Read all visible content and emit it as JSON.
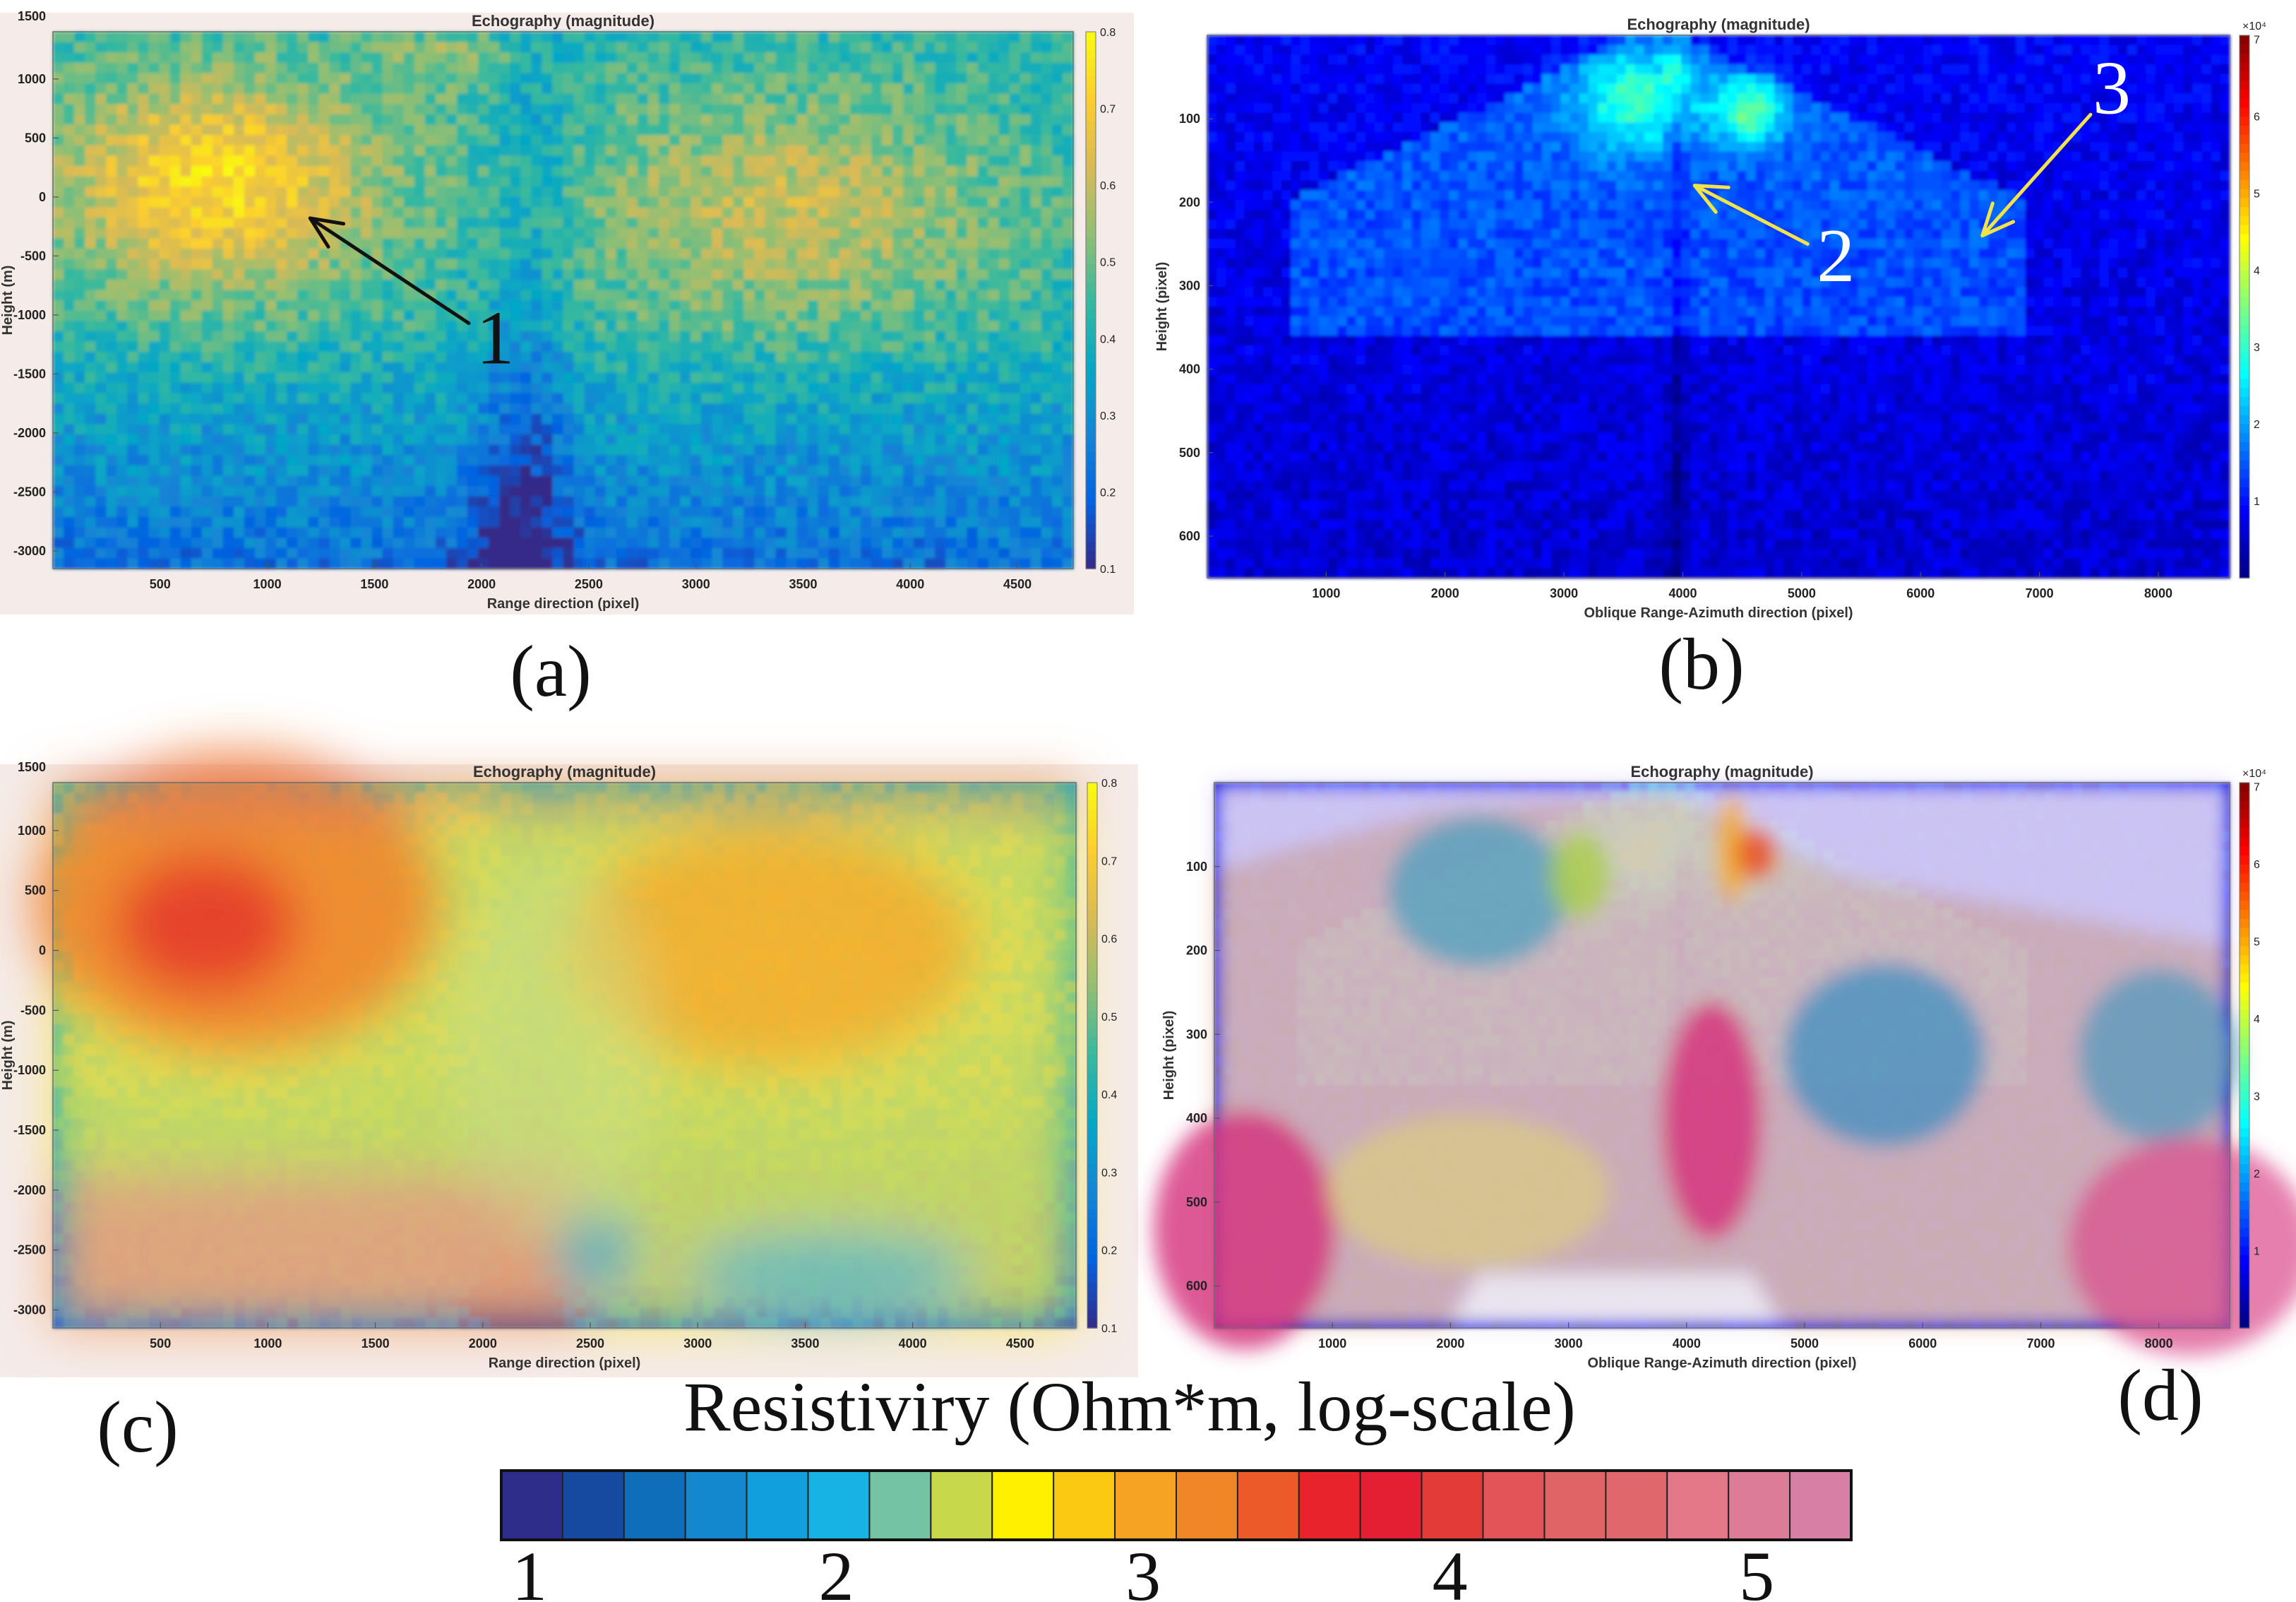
{
  "colors": {
    "parula": [
      "#352a87",
      "#0363e1",
      "#1485d4",
      "#06a7c6",
      "#38b99e",
      "#92bf73",
      "#d9ba56",
      "#fcce2e",
      "#f9fb0e"
    ],
    "jet": [
      "#00007f",
      "#0000ff",
      "#007fff",
      "#00ffff",
      "#7fff7f",
      "#ffff00",
      "#ff7f00",
      "#ff0000",
      "#7f0000"
    ],
    "arrow_black": "#111111",
    "arrow_yellow": "#f2e34a"
  },
  "chart_data": [
    {
      "id": "a",
      "type": "heatmap",
      "panel_label": "(a)",
      "title": "Echography (magnitude)",
      "xlabel": "Range direction (pixel)",
      "ylabel": "Height (m)",
      "xlim": [
        0,
        4760
      ],
      "ylim": [
        -3150,
        1400
      ],
      "xticks": [
        500,
        1000,
        1500,
        2000,
        2500,
        3000,
        3500,
        4000,
        4500
      ],
      "yticks": [
        1000,
        500,
        0,
        -500,
        -1000,
        -1500,
        -2000,
        -2500,
        -3000
      ],
      "ytick_labels": [
        "1000",
        "500",
        "0",
        "-500",
        "-1000",
        "-1500",
        "-2000",
        "-2500",
        "-3000"
      ],
      "corner_tick": "1500",
      "colorbar": {
        "ticks": [
          "0.8",
          "0.7",
          "0.6",
          "0.5",
          "0.4",
          "0.3",
          "0.2",
          "0.1"
        ],
        "colormap": "parula",
        "range": [
          0.1,
          0.8
        ]
      },
      "annotations": [
        {
          "text": "1",
          "x_from": 1940,
          "y_from": -1070,
          "x_to": 1200,
          "y_to": -180,
          "color": "black"
        }
      ]
    },
    {
      "id": "b",
      "type": "heatmap",
      "panel_label": "(b)",
      "title": "Echography (magnitude)",
      "xlabel": "Oblique Range-Azimuth direction (pixel)",
      "ylabel": "Height (pixel)",
      "xlim": [
        0,
        8600
      ],
      "ylim": [
        0,
        650
      ],
      "y_reversed": true,
      "xticks": [
        1000,
        2000,
        3000,
        4000,
        5000,
        6000,
        7000,
        8000
      ],
      "yticks": [
        100,
        200,
        300,
        400,
        500,
        600
      ],
      "ytick_labels": [
        "100",
        "200",
        "300",
        "400",
        "500",
        "600"
      ],
      "colorbar": {
        "ticks": [
          "7",
          "6",
          "5",
          "4",
          "3",
          "2",
          "1"
        ],
        "multiplier": "×10⁴",
        "colormap": "jet",
        "range": [
          0,
          70000
        ]
      },
      "annotations": [
        {
          "text": "2",
          "x_from": 5050,
          "y_from": 250,
          "x_to": 4100,
          "y_to": 180,
          "color": "yellow"
        },
        {
          "text": "3",
          "x_from": 7430,
          "y_from": 95,
          "x_to": 6520,
          "y_to": 240,
          "color": "yellow"
        }
      ]
    },
    {
      "id": "c",
      "type": "heatmap",
      "panel_label": "(c)",
      "title": "Echography (magnitude)",
      "xlabel": "Range direction (pixel)",
      "ylabel": "Height (m)",
      "xlim": [
        0,
        4760
      ],
      "ylim": [
        -3150,
        1400
      ],
      "xticks": [
        500,
        1000,
        1500,
        2000,
        2500,
        3000,
        3500,
        4000,
        4500
      ],
      "yticks": [
        1000,
        500,
        0,
        -500,
        -1000,
        -1500,
        -2000,
        -2500,
        -3000
      ],
      "ytick_labels": [
        "1000",
        "500",
        "0",
        "-500",
        "-1000",
        "-1500",
        "-2000",
        "-2500",
        "-3000"
      ],
      "corner_tick": "1500",
      "colorbar": {
        "ticks": [
          "0.8",
          "0.7",
          "0.6",
          "0.5",
          "0.4",
          "0.3",
          "0.2",
          "0.1"
        ],
        "colormap": "parula",
        "range": [
          0.1,
          0.8
        ]
      },
      "overlay": "resistivity"
    },
    {
      "id": "d",
      "type": "heatmap",
      "panel_label": "(d)",
      "title": "Echography (magnitude)",
      "xlabel": "Oblique Range-Azimuth direction (pixel)",
      "ylabel": "Height (pixel)",
      "xlim": [
        0,
        8600
      ],
      "ylim": [
        0,
        650
      ],
      "y_reversed": true,
      "xticks": [
        1000,
        2000,
        3000,
        4000,
        5000,
        6000,
        7000,
        8000
      ],
      "yticks": [
        100,
        200,
        300,
        400,
        500,
        600
      ],
      "ytick_labels": [
        "100",
        "200",
        "300",
        "400",
        "500",
        "600"
      ],
      "colorbar": {
        "ticks": [
          "7",
          "6",
          "5",
          "4",
          "3",
          "2",
          "1"
        ],
        "multiplier": "×10⁴",
        "colormap": "jet",
        "range": [
          0,
          70000
        ]
      },
      "overlay": "resistivity"
    }
  ],
  "legend": {
    "title": "Resistiviry (Ohm*m, log-scale)",
    "range": [
      1,
      5.4
    ],
    "ticks": [
      1,
      2,
      3,
      4,
      5
    ],
    "tick_labels": [
      "1",
      "2",
      "3",
      "4",
      "5"
    ],
    "swatches": [
      "#2e2e8a",
      "#1649a0",
      "#0e6eb9",
      "#1388cf",
      "#129fdd",
      "#17b3e5",
      "#74c3a5",
      "#c7d94a",
      "#fff000",
      "#fcc912",
      "#f6a223",
      "#f18629",
      "#ec5a2a",
      "#e8232c",
      "#e41f33",
      "#e33b37",
      "#e35458",
      "#e06366",
      "#e0686c",
      "#e47888",
      "#dc7c98",
      "#d87fa6"
    ]
  }
}
